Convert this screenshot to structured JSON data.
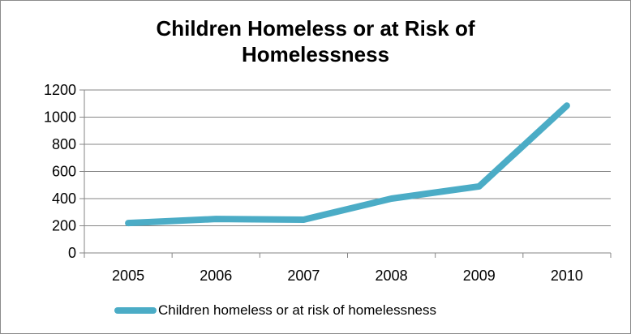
{
  "chart_data": {
    "type": "line",
    "title": "Children Homeless or at Risk of Homelessness",
    "title_lines": [
      "Children Homeless or at Risk of",
      "Homelessness"
    ],
    "categories": [
      "2005",
      "2006",
      "2007",
      "2008",
      "2009",
      "2010"
    ],
    "series": [
      {
        "name": "Children homeless or at risk of homelessness",
        "values": [
          220,
          250,
          245,
          400,
          490,
          1085
        ],
        "color": "#4bacc6"
      }
    ],
    "ylim": [
      0,
      1200
    ],
    "yticks": [
      "0",
      "200",
      "400",
      "600",
      "800",
      "1000",
      "1200"
    ],
    "grid": true,
    "legend_position": "bottom"
  }
}
